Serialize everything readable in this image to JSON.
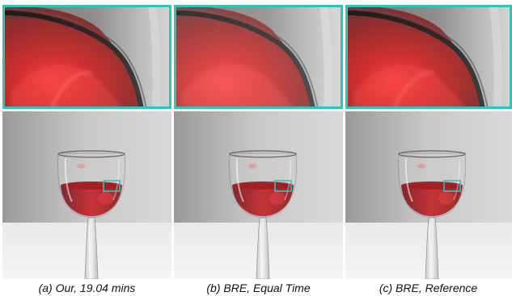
{
  "figure": {
    "panels": [
      {
        "caption": "(a) Our, 19.04 mins",
        "inset_color": "#2ec4b6",
        "noise": 0.0
      },
      {
        "caption": "(b) BRE, Equal Time",
        "inset_color": "#2ec4b6",
        "noise": 1.0
      },
      {
        "caption": "(c) BRE, Reference",
        "inset_color": "#2ec4b6",
        "noise": 0.15
      }
    ],
    "colors": {
      "inset_border": "#2ec4b6",
      "wine": "#c81e24",
      "background_light": "#e4e4e4",
      "background_dark": "#8e8e8e"
    }
  }
}
